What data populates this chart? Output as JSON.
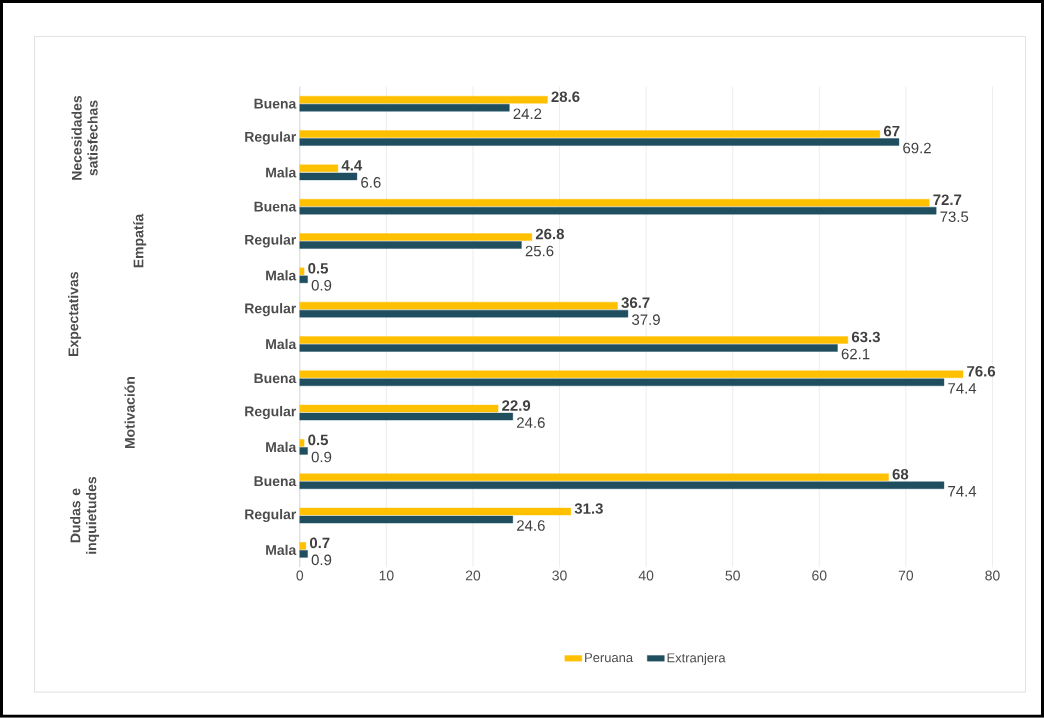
{
  "chart_data": {
    "type": "bar",
    "orientation": "horizontal",
    "categories": [
      "Buena",
      "Regular",
      "Mala",
      "Buena",
      "Regular",
      "Mala",
      "Regular",
      "Mala",
      "Buena",
      "Regular",
      "Mala",
      "Buena",
      "Regular",
      "Mala"
    ],
    "series": [
      {
        "name": "Peruana",
        "color": "#ffc000",
        "values": [
          28.6,
          67,
          4.4,
          72.7,
          26.8,
          0.5,
          36.7,
          63.3,
          76.6,
          22.9,
          0.5,
          68,
          31.3,
          0.7
        ]
      },
      {
        "name": "Extranjera",
        "color": "#1f4e5f",
        "values": [
          24.2,
          69.2,
          6.6,
          73.5,
          25.6,
          0.9,
          37.9,
          62.1,
          74.4,
          24.6,
          0.9,
          74.4,
          24.6,
          0.9
        ]
      }
    ],
    "annotations": [
      "Necesidades satisfechas",
      "Empatía",
      "Expectativas",
      "Motivación",
      "Dudas e inquietudes"
    ],
    "xlim": [
      0,
      80
    ],
    "xticks": [
      0,
      10,
      20,
      30,
      40,
      50,
      60,
      70,
      80
    ],
    "data_labels": true,
    "grid": "x",
    "legend": "bottom"
  }
}
